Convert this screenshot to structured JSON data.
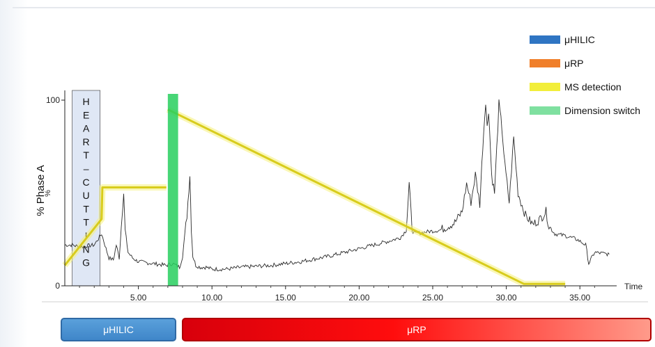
{
  "chart_data": {
    "type": "line",
    "ylabel": "% Phase A",
    "xlabel": "Time",
    "y_unit_label": "%",
    "xlim": [
      0,
      37.5
    ],
    "ylim": [
      0,
      100
    ],
    "x_ticks": [
      "5.00",
      "10.00",
      "15.00",
      "20.00",
      "25.00",
      "30.00",
      "35.00"
    ],
    "y_ticks": [
      "0",
      "100"
    ],
    "legend": [
      {
        "label": "μHILIC",
        "color": "#2f75c3"
      },
      {
        "label": "μRP",
        "color": "#f07f2a"
      },
      {
        "label": "MS detection",
        "color": "#f2ee3a"
      },
      {
        "label": "Dimension switch",
        "color": "#7fe0a0"
      }
    ],
    "heart_cutting_label": [
      "H",
      "E",
      "A",
      "R",
      "T",
      "–",
      "C",
      "U",
      "T",
      "T",
      "I",
      "N",
      "G"
    ],
    "heart_cutting_window": [
      0.5,
      2.4
    ],
    "dimension_switch_window": [
      7.0,
      7.7
    ],
    "gradient_hilic": {
      "x": [
        0,
        2.5,
        2.55,
        6.9
      ],
      "y": [
        11,
        36,
        53,
        53
      ]
    },
    "gradient_rp": {
      "x": [
        7.0,
        31.2,
        34.0
      ],
      "y": [
        95,
        1,
        1
      ]
    },
    "chromatogram": {
      "x": [
        0,
        0.5,
        1,
        2,
        2.5,
        2.8,
        3,
        3.3,
        3.5,
        3.7,
        3.9,
        4.0,
        4.1,
        4.3,
        4.6,
        5,
        6,
        6.9,
        7.3,
        7.8,
        8.0,
        8.3,
        8.5,
        8.6,
        8.7,
        8.9,
        9.2,
        9.6,
        10,
        11,
        12,
        14,
        16,
        18,
        20,
        21,
        22,
        22.8,
        23.2,
        23.4,
        23.6,
        23.8,
        24.5,
        25.5,
        26.5,
        27,
        27.3,
        27.6,
        27.9,
        28.2,
        28.4,
        28.6,
        28.7,
        28.8,
        29.0,
        29.2,
        29.5,
        29.7,
        29.9,
        30.2,
        30.5,
        30.8,
        31.0,
        31.3,
        31.8,
        32.3,
        32.7,
        32.9,
        33.3,
        34,
        34.8,
        35.4,
        35.6,
        36,
        37
      ],
      "y": [
        22,
        22,
        21,
        22,
        28,
        20,
        15,
        14,
        22,
        15,
        40,
        50,
        30,
        18,
        15,
        13,
        12,
        11,
        12,
        10,
        16,
        38,
        60,
        30,
        16,
        11,
        10,
        10,
        9,
        9,
        10,
        11,
        13,
        16,
        20,
        22,
        24,
        26,
        30,
        55,
        30,
        28,
        29,
        30,
        34,
        40,
        55,
        45,
        60,
        44,
        75,
        100,
        85,
        95,
        60,
        50,
        98,
        85,
        65,
        45,
        80,
        50,
        45,
        38,
        33,
        36,
        40,
        32,
        28,
        27,
        25,
        22,
        12,
        18,
        17
      ]
    }
  },
  "bars": {
    "hilic_label": "μHILIC",
    "rp_label": "μRP"
  }
}
